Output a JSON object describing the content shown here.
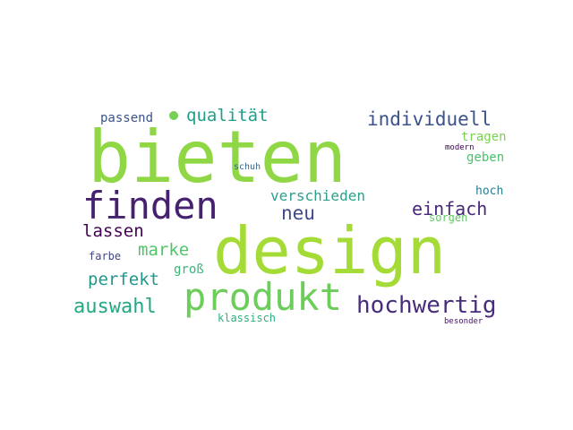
{
  "word_cloud": {
    "words": [
      {
        "text": "bieten",
        "color": "#8fd744"
      },
      {
        "text": "design",
        "color": "#a5db36"
      },
      {
        "text": "produkt",
        "color": "#6ccd5a"
      },
      {
        "text": "finden",
        "color": "#46216f"
      },
      {
        "text": "hochwertig",
        "color": "#472d7b"
      },
      {
        "text": "auswahl",
        "color": "#22a884"
      },
      {
        "text": "individuell",
        "color": "#3b528b"
      },
      {
        "text": "neu",
        "color": "#3e4a89"
      },
      {
        "text": "einfach",
        "color": "#482878"
      },
      {
        "text": "qualität",
        "color": "#1f9f88"
      },
      {
        "text": "verschieden",
        "color": "#2a9f8c"
      },
      {
        "text": "lassen",
        "color": "#440154"
      },
      {
        "text": "marke",
        "color": "#52c569"
      },
      {
        "text": "perfekt",
        "color": "#1f988b"
      },
      {
        "text": "passend",
        "color": "#3b528b"
      },
      {
        "text": "tragen",
        "color": "#7ad151"
      },
      {
        "text": "geben",
        "color": "#4ac16d"
      },
      {
        "text": "hoch",
        "color": "#277f8e"
      },
      {
        "text": "sorgen",
        "color": "#5ec962"
      },
      {
        "text": "groß",
        "color": "#35b779"
      },
      {
        "text": "farbe",
        "color": "#404688"
      },
      {
        "text": "klassisch",
        "color": "#2cb17e"
      },
      {
        "text": "schuh",
        "color": "#31688e"
      },
      {
        "text": "modern",
        "color": "#440154"
      },
      {
        "text": "besonder",
        "color": "#481467"
      }
    ],
    "dot_color": "#75d054"
  }
}
